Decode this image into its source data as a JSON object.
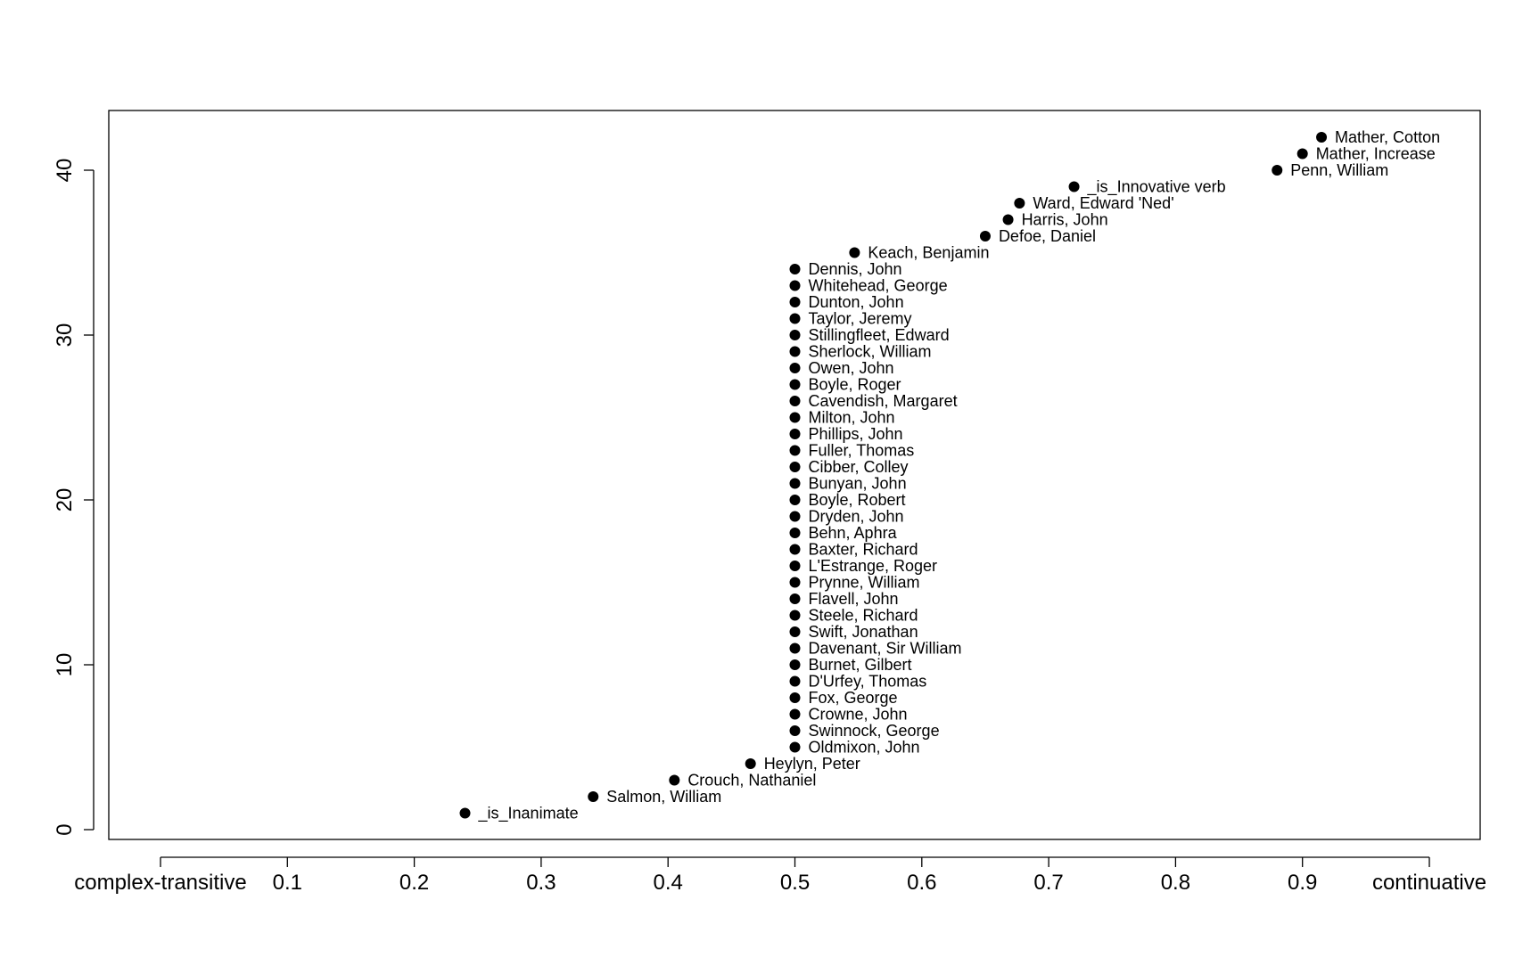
{
  "chart_data": {
    "type": "scatter",
    "title": "",
    "xlabel": "",
    "ylabel": "",
    "xlim": [
      0,
      1
    ],
    "ylim": [
      0,
      42
    ],
    "x_axis_end_labels": {
      "left": "complex-transitive",
      "right": "continuative"
    },
    "x_ticks": [
      {
        "value": 0.1,
        "label": "0.1"
      },
      {
        "value": 0.2,
        "label": "0.2"
      },
      {
        "value": 0.3,
        "label": "0.3"
      },
      {
        "value": 0.4,
        "label": "0.4"
      },
      {
        "value": 0.5,
        "label": "0.5"
      },
      {
        "value": 0.6,
        "label": "0.6"
      },
      {
        "value": 0.7,
        "label": "0.7"
      },
      {
        "value": 0.8,
        "label": "0.8"
      },
      {
        "value": 0.9,
        "label": "0.9"
      }
    ],
    "y_ticks": [
      {
        "value": 0,
        "label": "0"
      },
      {
        "value": 10,
        "label": "10"
      },
      {
        "value": 20,
        "label": "20"
      },
      {
        "value": 30,
        "label": "30"
      },
      {
        "value": 40,
        "label": "40"
      }
    ],
    "points": [
      {
        "label": "_is_Inanimate",
        "x": 0.24,
        "y": 1
      },
      {
        "label": "Salmon, William",
        "x": 0.341,
        "y": 2
      },
      {
        "label": "Crouch, Nathaniel",
        "x": 0.405,
        "y": 3
      },
      {
        "label": "Heylyn, Peter",
        "x": 0.465,
        "y": 4
      },
      {
        "label": "Oldmixon, John",
        "x": 0.5,
        "y": 5
      },
      {
        "label": "Swinnock, George",
        "x": 0.5,
        "y": 6
      },
      {
        "label": "Crowne, John",
        "x": 0.5,
        "y": 7
      },
      {
        "label": "Fox, George",
        "x": 0.5,
        "y": 8
      },
      {
        "label": "D'Urfey, Thomas",
        "x": 0.5,
        "y": 9
      },
      {
        "label": "Burnet, Gilbert",
        "x": 0.5,
        "y": 10
      },
      {
        "label": "Davenant, Sir William",
        "x": 0.5,
        "y": 11
      },
      {
        "label": "Swift, Jonathan",
        "x": 0.5,
        "y": 12
      },
      {
        "label": "Steele, Richard",
        "x": 0.5,
        "y": 13
      },
      {
        "label": "Flavell, John",
        "x": 0.5,
        "y": 14
      },
      {
        "label": "Prynne, William",
        "x": 0.5,
        "y": 15
      },
      {
        "label": "L'Estrange, Roger",
        "x": 0.5,
        "y": 16
      },
      {
        "label": "Baxter, Richard",
        "x": 0.5,
        "y": 17
      },
      {
        "label": "Behn, Aphra",
        "x": 0.5,
        "y": 18
      },
      {
        "label": "Dryden, John",
        "x": 0.5,
        "y": 19
      },
      {
        "label": "Boyle, Robert",
        "x": 0.5,
        "y": 20
      },
      {
        "label": "Bunyan, John",
        "x": 0.5,
        "y": 21
      },
      {
        "label": "Cibber, Colley",
        "x": 0.5,
        "y": 22
      },
      {
        "label": "Fuller, Thomas",
        "x": 0.5,
        "y": 23
      },
      {
        "label": "Phillips, John",
        "x": 0.5,
        "y": 24
      },
      {
        "label": "Milton, John",
        "x": 0.5,
        "y": 25
      },
      {
        "label": "Cavendish, Margaret",
        "x": 0.5,
        "y": 26
      },
      {
        "label": "Boyle, Roger",
        "x": 0.5,
        "y": 27
      },
      {
        "label": "Owen, John",
        "x": 0.5,
        "y": 28
      },
      {
        "label": "Sherlock, William",
        "x": 0.5,
        "y": 29
      },
      {
        "label": "Stillingfleet, Edward",
        "x": 0.5,
        "y": 30
      },
      {
        "label": "Taylor, Jeremy",
        "x": 0.5,
        "y": 31
      },
      {
        "label": "Dunton, John",
        "x": 0.5,
        "y": 32
      },
      {
        "label": "Whitehead, George",
        "x": 0.5,
        "y": 33
      },
      {
        "label": "Dennis, John",
        "x": 0.5,
        "y": 34
      },
      {
        "label": "Keach, Benjamin",
        "x": 0.547,
        "y": 35
      },
      {
        "label": "Defoe, Daniel",
        "x": 0.65,
        "y": 36
      },
      {
        "label": "Harris, John",
        "x": 0.668,
        "y": 37
      },
      {
        "label": "Ward, Edward 'Ned'",
        "x": 0.677,
        "y": 38
      },
      {
        "label": "_is_Innovative verb",
        "x": 0.72,
        "y": 39
      },
      {
        "label": "Penn, William",
        "x": 0.88,
        "y": 40
      },
      {
        "label": "Mather, Increase",
        "x": 0.9,
        "y": 41
      },
      {
        "label": "Mather, Cotton",
        "x": 0.915,
        "y": 42
      }
    ]
  }
}
